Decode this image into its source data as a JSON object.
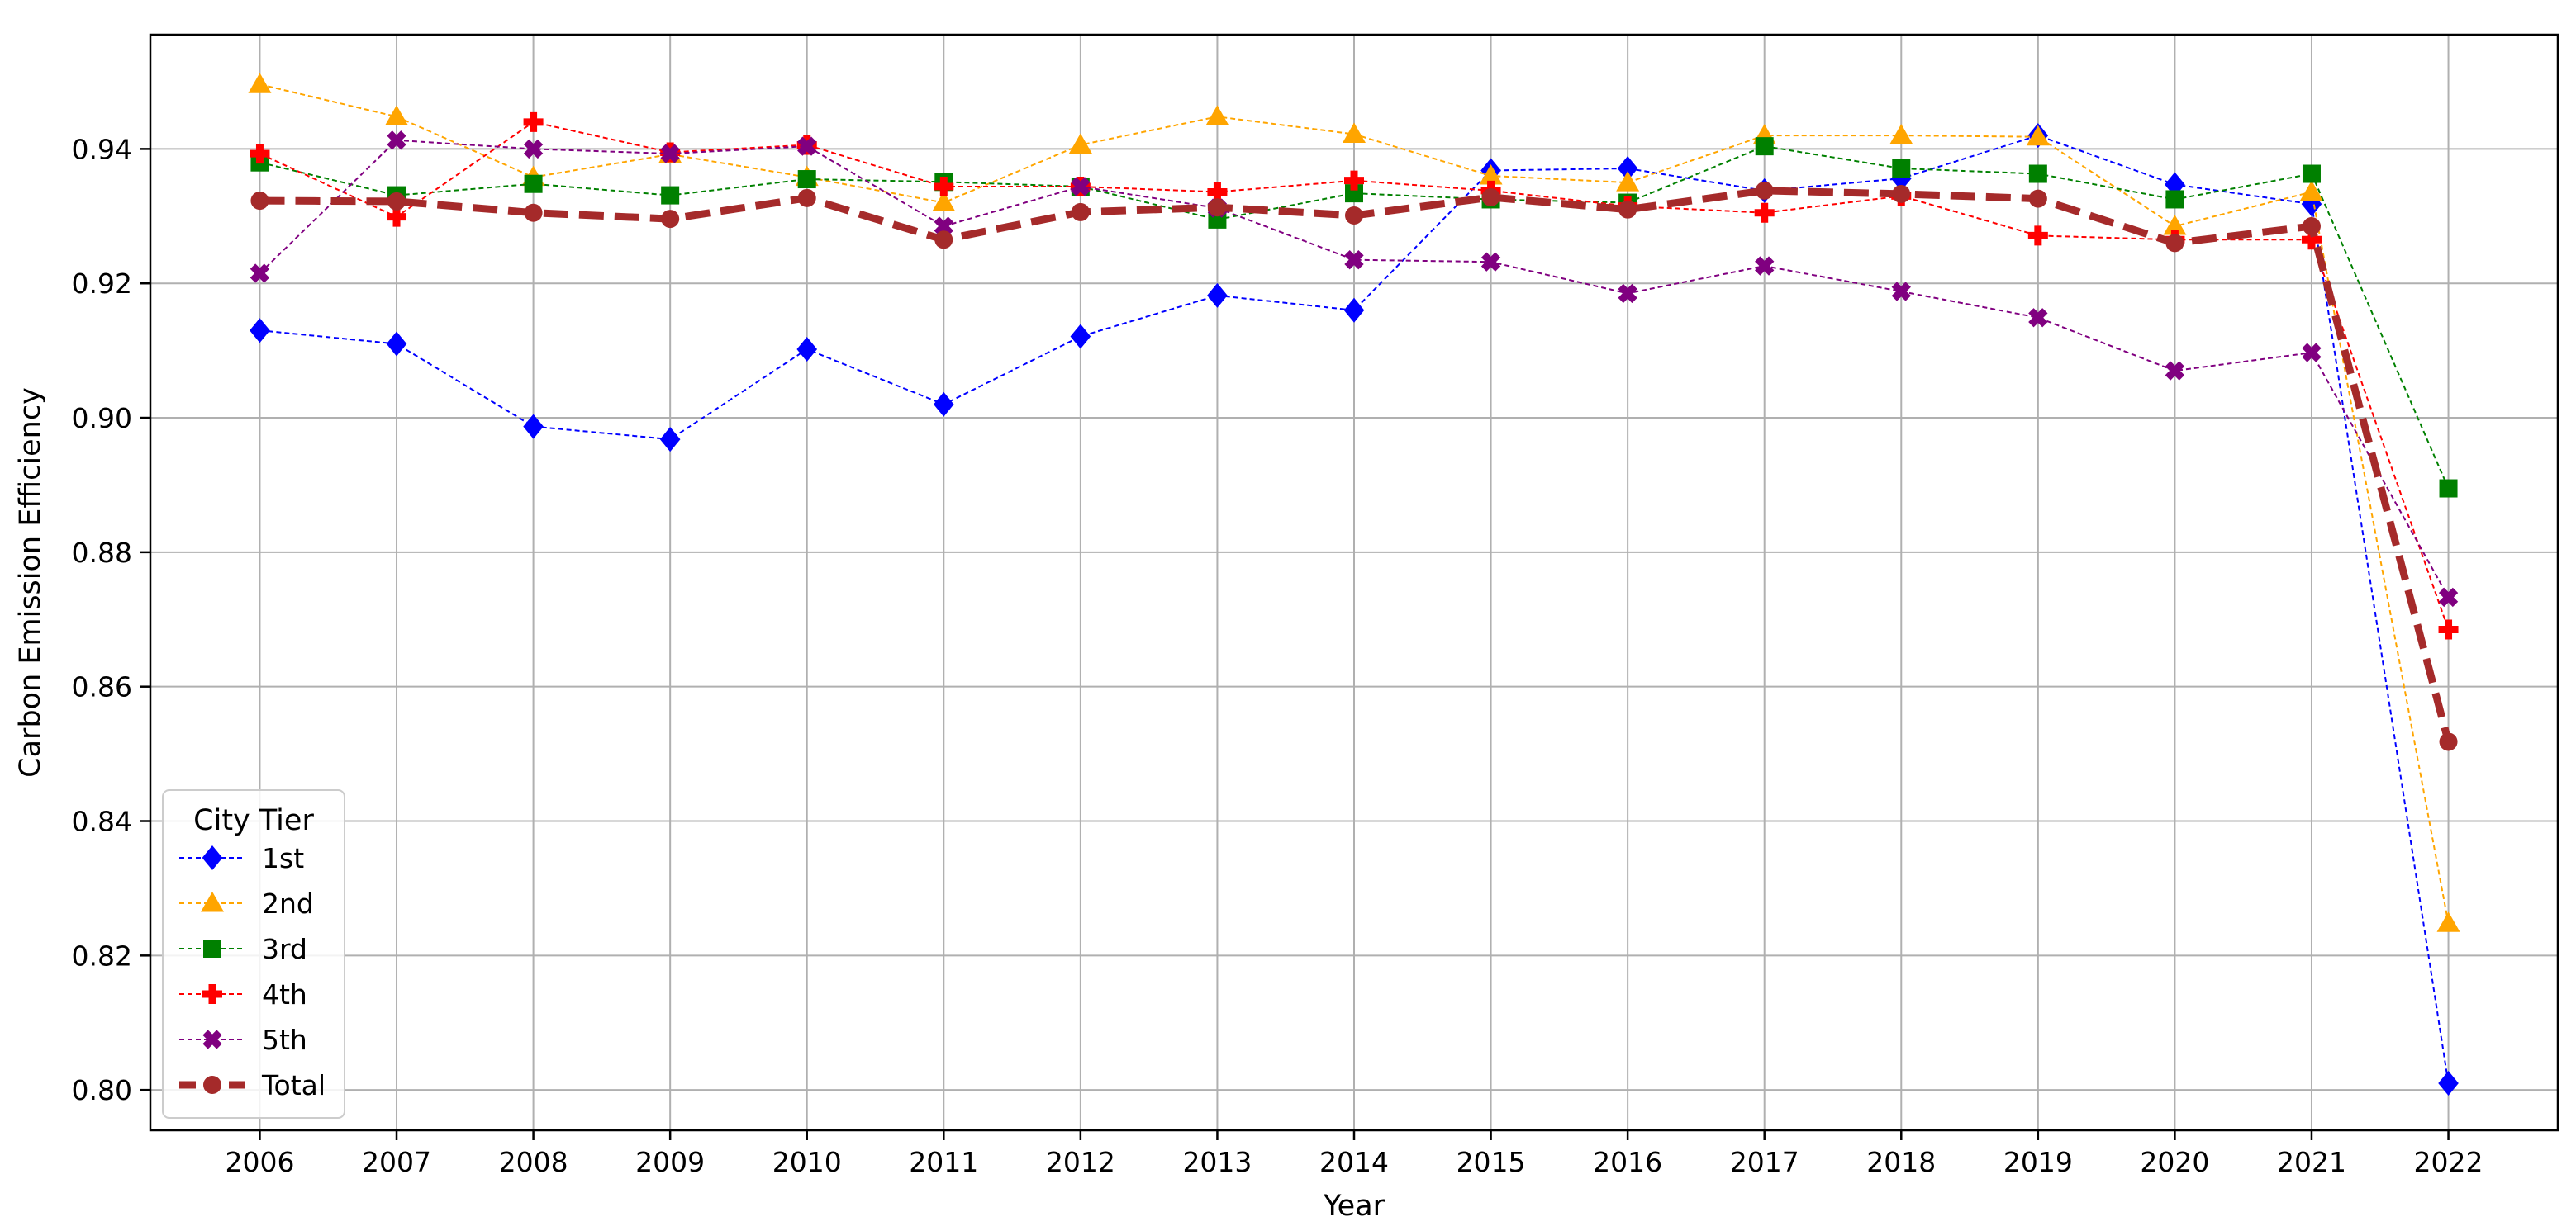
{
  "chart_data": {
    "type": "line",
    "title": "",
    "xlabel": "Year",
    "ylabel": "Carbon Emission Efficiency",
    "x": [
      2006,
      2007,
      2008,
      2009,
      2010,
      2011,
      2012,
      2013,
      2014,
      2015,
      2016,
      2017,
      2018,
      2019,
      2020,
      2021,
      2022
    ],
    "x_tick_labels": [
      "2006",
      "2007",
      "2008",
      "2009",
      "2010",
      "2011",
      "2012",
      "2013",
      "2014",
      "2015",
      "2016",
      "2017",
      "2018",
      "2019",
      "2020",
      "2021",
      "2022"
    ],
    "xlim": [
      2005.2,
      2022.8
    ],
    "ylim": [
      0.794,
      0.957
    ],
    "y_ticks": [
      0.8,
      0.82,
      0.84,
      0.86,
      0.88,
      0.9,
      0.92,
      0.94
    ],
    "y_tick_labels": [
      "0.80",
      "0.82",
      "0.84",
      "0.86",
      "0.88",
      "0.90",
      "0.92",
      "0.94"
    ],
    "grid": true,
    "legend": {
      "title": "City Tier",
      "placement": "lower-left"
    },
    "series": [
      {
        "name": "1st",
        "color": "#0000ff",
        "marker": "diamond",
        "line": "dashed-thin",
        "values": [
          0.913,
          0.911,
          0.8987,
          0.8968,
          0.9102,
          0.902,
          0.9121,
          0.9182,
          0.916,
          0.9368,
          0.9371,
          0.9338,
          0.9356,
          0.942,
          0.9347,
          0.9318,
          0.801
        ]
      },
      {
        "name": "2nd",
        "color": "#ffa500",
        "marker": "triangle",
        "line": "dashed-thin",
        "values": [
          0.9496,
          0.9448,
          0.9358,
          0.9392,
          0.9358,
          0.932,
          0.9406,
          0.9448,
          0.9422,
          0.936,
          0.935,
          0.942,
          0.942,
          0.9418,
          0.9285,
          0.9336,
          0.8248
        ]
      },
      {
        "name": "3rd",
        "color": "#008000",
        "marker": "square",
        "line": "dashed-thin",
        "values": [
          0.938,
          0.9331,
          0.9348,
          0.9331,
          0.9355,
          0.9351,
          0.9344,
          0.9295,
          0.9334,
          0.9325,
          0.932,
          0.9404,
          0.9371,
          0.9363,
          0.9325,
          0.9363,
          0.8895
        ]
      },
      {
        "name": "4th",
        "color": "#ff0000",
        "marker": "plus",
        "line": "dashed-thin",
        "values": [
          0.9393,
          0.9299,
          0.944,
          0.9395,
          0.9406,
          0.9344,
          0.9344,
          0.9336,
          0.9353,
          0.9338,
          0.9315,
          0.9305,
          0.933,
          0.9271,
          0.9265,
          0.9265,
          0.8685
        ]
      },
      {
        "name": "5th",
        "color": "#800080",
        "marker": "x",
        "line": "dashed-thin",
        "values": [
          0.9215,
          0.9413,
          0.94,
          0.9393,
          0.9404,
          0.9285,
          0.9344,
          0.9312,
          0.9235,
          0.9232,
          0.9185,
          0.9226,
          0.9188,
          0.9149,
          0.907,
          0.9097,
          0.8733
        ]
      },
      {
        "name": "Total",
        "color": "#a52a2a",
        "marker": "circle",
        "line": "dashed-thick",
        "values": [
          0.9323,
          0.9322,
          0.9305,
          0.9296,
          0.9327,
          0.9265,
          0.9306,
          0.9313,
          0.9301,
          0.9328,
          0.931,
          0.9338,
          0.9333,
          0.9326,
          0.926,
          0.9285,
          0.8518
        ]
      }
    ]
  }
}
